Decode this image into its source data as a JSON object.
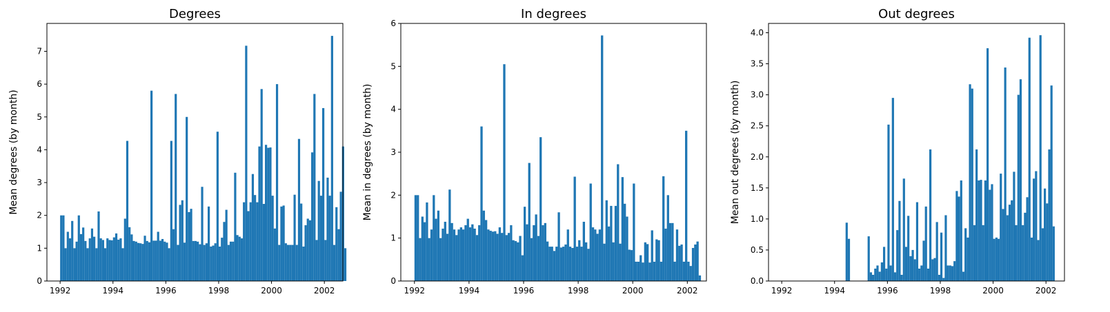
{
  "chart_data": [
    {
      "type": "bar",
      "title": "Degrees",
      "xlabel": "",
      "ylabel": "Mean degrees (by month)",
      "xlim": [
        1991.5,
        2002.7
      ],
      "ylim": [
        0,
        7.85
      ],
      "xticks": [
        1992,
        1994,
        1996,
        1998,
        2000,
        2002
      ],
      "yticks": [
        0,
        1,
        2,
        3,
        4,
        5,
        6,
        7
      ],
      "ytick_labels": [
        "0",
        "1",
        "2",
        "3",
        "4",
        "5",
        "6",
        "7"
      ],
      "color": "#1f77b4",
      "x_start": "1992-01",
      "x_step": "1 month",
      "values": [
        2.0,
        2.0,
        1.0,
        1.5,
        1.3,
        1.83,
        1.0,
        1.2,
        2.0,
        1.43,
        1.63,
        1.22,
        1.0,
        1.3,
        1.6,
        1.35,
        1.0,
        2.12,
        1.3,
        1.25,
        1.0,
        1.3,
        1.25,
        1.24,
        1.33,
        1.45,
        1.26,
        1.3,
        1.0,
        1.9,
        4.27,
        1.64,
        1.42,
        1.22,
        1.2,
        1.16,
        1.15,
        1.13,
        1.38,
        1.22,
        1.18,
        5.8,
        1.23,
        1.23,
        1.5,
        1.23,
        1.28,
        1.2,
        1.17,
        1.0,
        4.27,
        1.58,
        5.7,
        1.1,
        2.32,
        2.46,
        1.17,
        5.0,
        2.1,
        2.2,
        1.22,
        1.22,
        1.2,
        1.12,
        2.87,
        1.1,
        1.15,
        2.27,
        1.05,
        1.08,
        1.15,
        4.55,
        1.05,
        1.32,
        1.8,
        2.17,
        1.1,
        1.2,
        1.2,
        3.3,
        1.4,
        1.35,
        1.3,
        2.4,
        7.17,
        2.13,
        2.4,
        3.26,
        2.62,
        2.4,
        4.1,
        5.85,
        2.35,
        4.15,
        4.06,
        4.07,
        2.6,
        1.6,
        6.0,
        1.1,
        2.27,
        2.3,
        1.15,
        1.1,
        1.1,
        1.1,
        2.63,
        1.1,
        4.33,
        2.36,
        1.05,
        1.7,
        1.9,
        1.85,
        3.92,
        5.7,
        1.25,
        3.05,
        2.6,
        5.27,
        1.25,
        3.15,
        2.6,
        7.47,
        1.1,
        2.25,
        1.58,
        2.72,
        4.1,
        1.0
      ]
    },
    {
      "type": "bar",
      "title": "In degrees",
      "xlabel": "",
      "ylabel": "Mean in degrees (by month)",
      "xlim": [
        1991.5,
        2002.7
      ],
      "ylim": [
        0,
        6.0
      ],
      "xticks": [
        1992,
        1994,
        1996,
        1998,
        2000,
        2002
      ],
      "yticks": [
        0,
        1,
        2,
        3,
        4,
        5,
        6
      ],
      "ytick_labels": [
        "0",
        "1",
        "2",
        "3",
        "4",
        "5",
        "6"
      ],
      "color": "#1f77b4",
      "x_start": "1992-01",
      "x_step": "1 month",
      "values": [
        2.0,
        2.0,
        1.0,
        1.5,
        1.37,
        1.83,
        1.0,
        1.2,
        2.0,
        1.45,
        1.64,
        1.0,
        1.22,
        1.38,
        1.1,
        2.13,
        1.35,
        1.2,
        1.07,
        1.2,
        1.25,
        1.2,
        1.3,
        1.45,
        1.25,
        1.32,
        1.22,
        1.07,
        1.3,
        3.6,
        1.64,
        1.42,
        1.2,
        1.17,
        1.15,
        1.16,
        1.1,
        1.25,
        1.12,
        5.05,
        1.07,
        1.12,
        1.3,
        0.95,
        0.93,
        0.9,
        1.05,
        0.6,
        1.73,
        1.32,
        2.75,
        1.0,
        1.3,
        1.55,
        1.05,
        3.35,
        1.3,
        1.35,
        0.92,
        0.8,
        0.8,
        0.7,
        0.8,
        1.6,
        0.78,
        0.8,
        0.85,
        1.2,
        0.8,
        0.77,
        2.43,
        0.8,
        0.95,
        0.8,
        1.38,
        0.9,
        0.75,
        2.27,
        1.25,
        1.2,
        1.1,
        1.2,
        5.72,
        0.87,
        1.88,
        1.27,
        1.75,
        0.9,
        1.75,
        2.72,
        0.87,
        2.42,
        1.8,
        1.5,
        0.73,
        0.72,
        2.27,
        0.45,
        0.45,
        0.6,
        0.43,
        0.9,
        0.86,
        0.43,
        1.18,
        0.45,
        0.97,
        0.95,
        0.45,
        2.44,
        1.22,
        2.0,
        1.35,
        1.35,
        0.45,
        1.2,
        0.82,
        0.85,
        0.45,
        3.5,
        0.45,
        0.35,
        0.77,
        0.85,
        0.92,
        0.13
      ]
    },
    {
      "type": "bar",
      "title": "Out degrees",
      "xlabel": "",
      "ylabel": "Mean out degrees (by month)",
      "xlim": [
        1991.5,
        2002.7
      ],
      "ylim": [
        0,
        4.15
      ],
      "xticks": [
        1992,
        1994,
        1996,
        1998,
        2000,
        2002
      ],
      "yticks": [
        0,
        0.5,
        1.0,
        1.5,
        2.0,
        2.5,
        3.0,
        3.5,
        4.0
      ],
      "ytick_labels": [
        "0.0",
        "0.5",
        "1.0",
        "1.5",
        "2.0",
        "2.5",
        "3.0",
        "3.5",
        "4.0"
      ],
      "color": "#1f77b4",
      "x_start": "1992-01",
      "x_step": "1 month",
      "values": [
        0,
        0,
        0,
        0,
        0,
        0,
        0,
        0,
        0,
        0,
        0,
        0,
        0,
        0,
        0,
        0,
        0,
        0,
        0,
        0,
        0,
        0,
        0,
        0,
        0,
        0,
        0,
        0,
        0,
        0.94,
        0.68,
        0,
        0,
        0,
        0,
        0,
        0,
        0,
        0,
        0.72,
        0.14,
        0.1,
        0.2,
        0.25,
        0.15,
        0.3,
        0.55,
        0.2,
        2.52,
        0.25,
        2.95,
        0.14,
        0.82,
        1.29,
        0.1,
        1.65,
        0.55,
        1.05,
        0.4,
        0.5,
        0.35,
        1.27,
        0.2,
        0.25,
        0.65,
        1.2,
        0.2,
        2.12,
        0.35,
        0.37,
        0.95,
        0.1,
        0.78,
        0.05,
        1.06,
        0.25,
        0.25,
        0.24,
        0.32,
        1.45,
        1.36,
        1.62,
        0.15,
        0.85,
        0.7,
        3.17,
        3.1,
        0.9,
        2.12,
        1.62,
        1.63,
        0.9,
        1.62,
        3.75,
        1.47,
        1.56,
        0.68,
        0.7,
        0.68,
        1.73,
        1.16,
        3.44,
        1.06,
        1.23,
        1.3,
        1.76,
        0.9,
        3.0,
        3.25,
        0.9,
        1.1,
        1.35,
        3.92,
        0.7,
        1.65,
        1.77,
        0.66,
        3.96,
        0.85,
        1.49,
        1.25,
        2.12,
        3.15,
        0.88
      ]
    }
  ]
}
